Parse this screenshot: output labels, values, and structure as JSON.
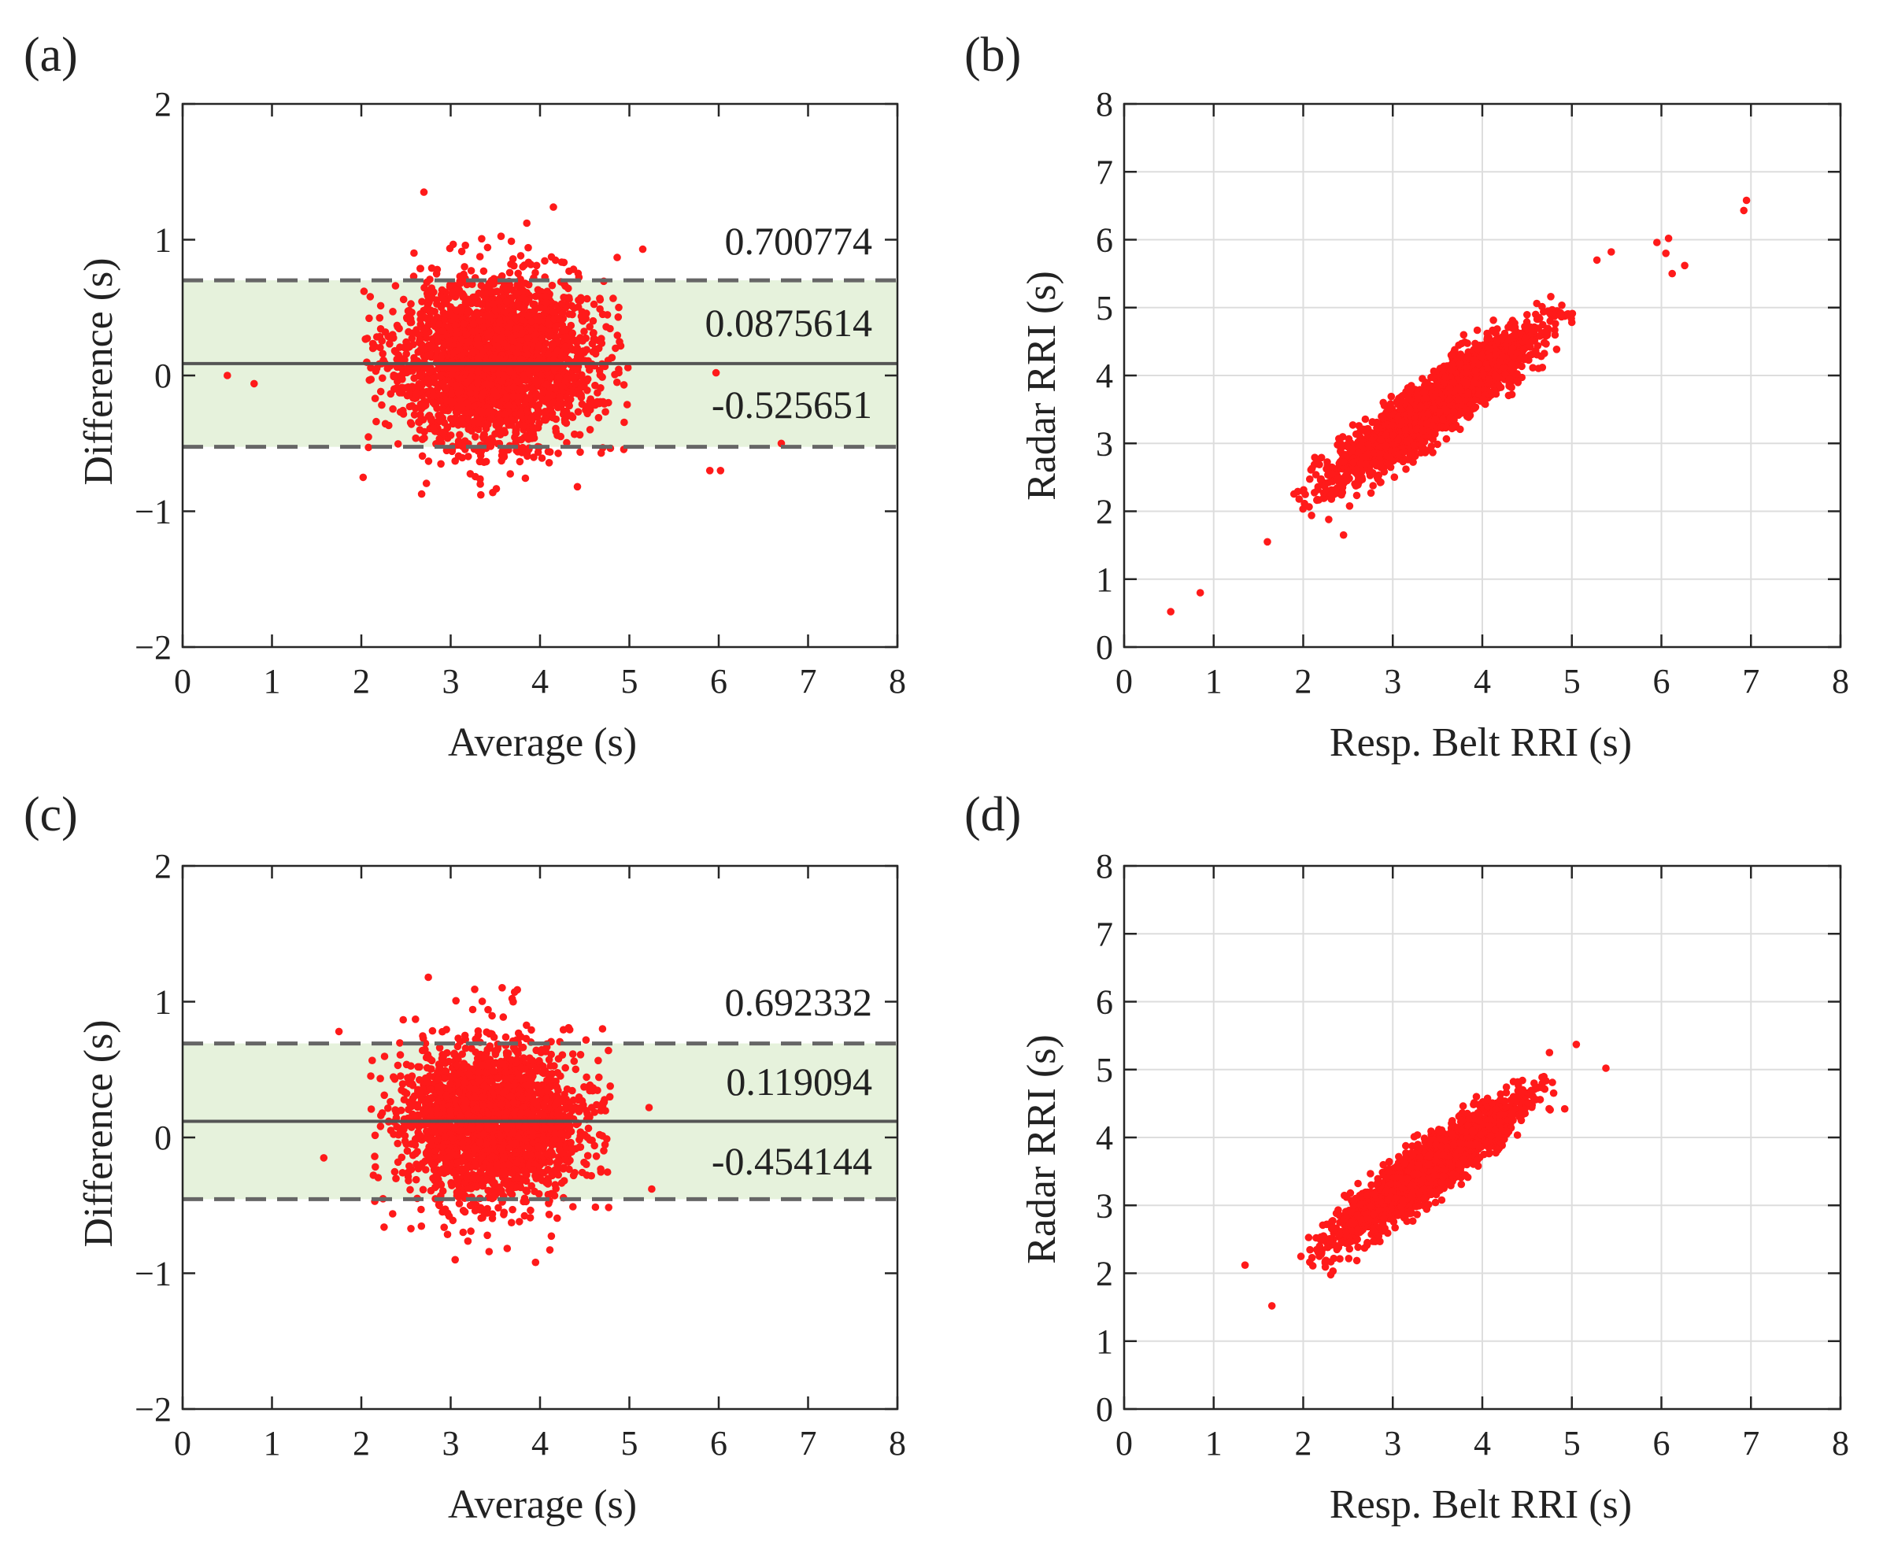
{
  "chart_data": [
    {
      "panel": "(a)",
      "type": "scatter",
      "subtype": "bland-altman",
      "xlabel": "Average (s)",
      "ylabel": "Difference (s)",
      "xlim": [
        0,
        8
      ],
      "ylim": [
        -2,
        2
      ],
      "xticks": [
        0,
        1,
        2,
        3,
        4,
        5,
        6,
        7,
        8
      ],
      "yticks": [
        -2,
        -1,
        0,
        1,
        2
      ],
      "ytick_labels": [
        "−2",
        "−1",
        "0",
        "1",
        "2"
      ],
      "grid": false,
      "upper_loa": 0.700774,
      "mean_diff": 0.0875614,
      "lower_loa": -0.525651,
      "upper_loa_label": "0.700774",
      "mean_diff_label": "0.0875614",
      "lower_loa_label": "-0.525651",
      "cloud": {
        "x_mean": 3.5,
        "x_sd": 0.55,
        "y_mean": 0.0875614,
        "y_sd": 0.31,
        "n": 2600,
        "seed": 11
      },
      "outliers": [
        [
          0.5,
          0.0
        ],
        [
          0.8,
          -0.06
        ],
        [
          2.02,
          -0.75
        ],
        [
          6.7,
          -0.5
        ],
        [
          5.9,
          -0.7
        ],
        [
          6.02,
          -0.7
        ],
        [
          5.15,
          0.93
        ],
        [
          4.15,
          1.24
        ],
        [
          2.7,
          1.35
        ],
        [
          5.97,
          0.02
        ]
      ],
      "marker_color": "#ff1a1a",
      "band_color": "#e6f2dc"
    },
    {
      "panel": "(b)",
      "type": "scatter",
      "xlabel": "Resp. Belt RRI (s)",
      "ylabel": "Radar RRI (s)",
      "xlim": [
        0,
        8
      ],
      "ylim": [
        0,
        8
      ],
      "xticks": [
        0,
        1,
        2,
        3,
        4,
        5,
        6,
        7,
        8
      ],
      "yticks": [
        0,
        1,
        2,
        3,
        4,
        5,
        6,
        7,
        8
      ],
      "grid": true,
      "cloud": {
        "a_mean": 3.5,
        "a_sd": 0.55,
        "d_mean": 0.0875614,
        "d_sd": 0.22,
        "n": 2600,
        "seed": 23
      },
      "outliers": [
        [
          0.52,
          0.52
        ],
        [
          0.85,
          0.8
        ],
        [
          1.6,
          1.55
        ],
        [
          2.45,
          1.65
        ],
        [
          6.95,
          6.58
        ],
        [
          6.92,
          6.43
        ],
        [
          6.08,
          6.02
        ],
        [
          5.95,
          5.96
        ],
        [
          6.05,
          5.8
        ],
        [
          6.12,
          5.5
        ],
        [
          6.26,
          5.62
        ],
        [
          5.44,
          5.82
        ],
        [
          5.28,
          5.7
        ]
      ],
      "marker_color": "#ff1a1a"
    },
    {
      "panel": "(c)",
      "type": "scatter",
      "subtype": "bland-altman",
      "xlabel": "Average (s)",
      "ylabel": "Difference (s)",
      "xlim": [
        0,
        8
      ],
      "ylim": [
        -2,
        2
      ],
      "xticks": [
        0,
        1,
        2,
        3,
        4,
        5,
        6,
        7,
        8
      ],
      "yticks": [
        -2,
        -1,
        0,
        1,
        2
      ],
      "ytick_labels": [
        "−2",
        "−1",
        "0",
        "1",
        "2"
      ],
      "grid": false,
      "upper_loa": 0.692332,
      "mean_diff": 0.119094,
      "lower_loa": -0.454144,
      "upper_loa_label": "0.692332",
      "mean_diff_label": "0.119094",
      "lower_loa_label": "-0.454144",
      "cloud": {
        "x_mean": 3.45,
        "x_sd": 0.5,
        "y_mean": 0.119094,
        "y_sd": 0.29,
        "n": 2400,
        "seed": 37
      },
      "outliers": [
        [
          1.58,
          -0.15
        ],
        [
          1.75,
          0.78
        ],
        [
          5.22,
          0.22
        ],
        [
          5.25,
          -0.38
        ],
        [
          2.75,
          1.18
        ],
        [
          3.95,
          -0.92
        ],
        [
          3.05,
          -0.9
        ]
      ],
      "marker_color": "#ff1a1a",
      "band_color": "#e6f2dc"
    },
    {
      "panel": "(d)",
      "type": "scatter",
      "xlabel": "Resp. Belt RRI (s)",
      "ylabel": "Radar RRI (s)",
      "xlim": [
        0,
        8
      ],
      "ylim": [
        0,
        8
      ],
      "xticks": [
        0,
        1,
        2,
        3,
        4,
        5,
        6,
        7,
        8
      ],
      "yticks": [
        0,
        1,
        2,
        3,
        4,
        5,
        6,
        7,
        8
      ],
      "grid": true,
      "cloud": {
        "a_mean": 3.45,
        "a_sd": 0.5,
        "d_mean": 0.119094,
        "d_sd": 0.2,
        "n": 2400,
        "seed": 53
      },
      "outliers": [
        [
          1.35,
          2.12
        ],
        [
          1.65,
          1.52
        ],
        [
          5.38,
          5.02
        ],
        [
          5.05,
          5.37
        ],
        [
          4.75,
          5.25
        ]
      ],
      "marker_color": "#ff1a1a"
    }
  ]
}
